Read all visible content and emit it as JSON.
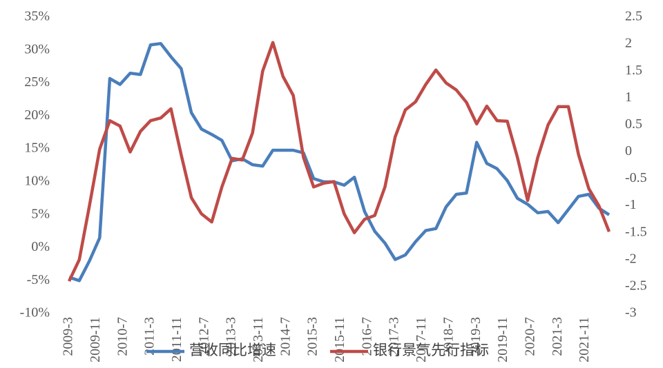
{
  "chart_data": {
    "type": "line",
    "x": [
      "2009-3",
      "2009-6",
      "2009-9",
      "2009-12",
      "2010-3",
      "2010-6",
      "2010-9",
      "2010-12",
      "2011-3",
      "2011-6",
      "2011-9",
      "2011-12",
      "2012-3",
      "2012-6",
      "2012-9",
      "2012-12",
      "2013-3",
      "2013-6",
      "2013-9",
      "2013-12",
      "2014-3",
      "2014-6",
      "2014-9",
      "2014-12",
      "2015-3",
      "2015-6",
      "2015-9",
      "2015-12",
      "2016-3",
      "2016-6",
      "2016-9",
      "2016-12",
      "2017-3",
      "2017-6",
      "2017-9",
      "2017-12",
      "2018-3",
      "2018-6",
      "2018-9",
      "2018-12",
      "2019-3",
      "2019-6",
      "2019-9",
      "2019-12",
      "2020-3",
      "2020-6",
      "2020-9",
      "2020-12",
      "2021-3",
      "2021-6",
      "2021-9",
      "2021-12",
      "2022-3",
      "2022-6"
    ],
    "xticks": [
      "2009-3",
      "2009-11",
      "2010-7",
      "2011-3",
      "2011-11",
      "2012-7",
      "2013-3",
      "2013-11",
      "2014-7",
      "2015-3",
      "2015-11",
      "2016-7",
      "2017-3",
      "2017-11",
      "2018-7",
      "2019-3",
      "2019-11",
      "2020-7",
      "2021-3",
      "2021-11"
    ],
    "series": [
      {
        "name": "营收同比增速",
        "color": "#4a7ebb",
        "values": [
          -4.5,
          -5,
          -2,
          1.5,
          25.7,
          24.8,
          26.5,
          26.3,
          30.8,
          31,
          29,
          27.2,
          20.5,
          18,
          17.2,
          16.3,
          13.2,
          13.5,
          12.6,
          12.4,
          14.8,
          14.8,
          14.8,
          14.4,
          10.5,
          10,
          10,
          9.5,
          10.7,
          5.5,
          2.5,
          0.7,
          -1.8,
          -1.1,
          0.9,
          2.6,
          2.9,
          6.2,
          8.1,
          8.3,
          16,
          12.8,
          12,
          10.2,
          7.5,
          6.6,
          5.3,
          5.5,
          3.8,
          5.8,
          7.8,
          8.1,
          6,
          5
        ]
      },
      {
        "name": "银行景气先行指标",
        "color": "#be4b48",
        "axis": "y2",
        "values": [
          -2.4,
          -2,
          -1,
          0.05,
          0.58,
          0.48,
          0,
          0.38,
          0.58,
          0.63,
          0.8,
          -0.05,
          -0.85,
          -1.15,
          -1.3,
          -0.65,
          -0.12,
          -0.15,
          0.35,
          1.5,
          2.03,
          1.4,
          1.05,
          -0.1,
          -0.65,
          -0.58,
          -0.55,
          -1.15,
          -1.5,
          -1.25,
          -1.18,
          -0.65,
          0.28,
          0.78,
          0.93,
          1.25,
          1.52,
          1.28,
          1.15,
          0.92,
          0.52,
          0.85,
          0.58,
          0.57,
          -0.1,
          -0.9,
          -0.1,
          0.5,
          0.84,
          0.84,
          -0.05,
          -0.68,
          -1,
          -1.48
        ]
      }
    ],
    "ylim": [
      -10,
      35
    ],
    "yticks": [
      {
        "value": -10,
        "label": "-10%"
      },
      {
        "value": -5,
        "label": "-5%"
      },
      {
        "value": 0,
        "label": "0%"
      },
      {
        "value": 5,
        "label": "5%"
      },
      {
        "value": 10,
        "label": "10%"
      },
      {
        "value": 15,
        "label": "15%"
      },
      {
        "value": 20,
        "label": "20%"
      },
      {
        "value": 25,
        "label": "25%"
      },
      {
        "value": 30,
        "label": "30%"
      },
      {
        "value": 35,
        "label": "35%"
      }
    ],
    "y2lim": [
      -3,
      2.5
    ],
    "y2ticks": [
      -3,
      -2.5,
      -2,
      -1.5,
      -1,
      -0.5,
      0,
      0.5,
      1,
      1.5,
      2,
      2.5
    ],
    "legend": "bottom"
  }
}
